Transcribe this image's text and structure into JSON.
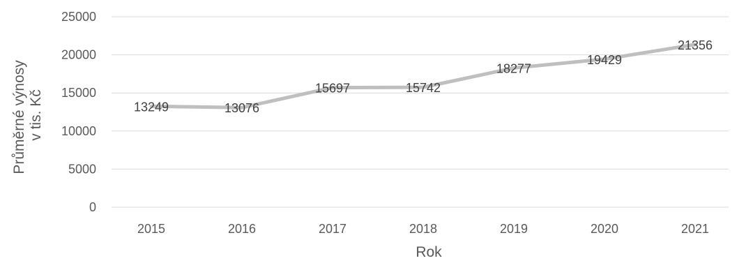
{
  "chart_data": {
    "type": "line",
    "categories": [
      "2015",
      "2016",
      "2017",
      "2018",
      "2019",
      "2020",
      "2021"
    ],
    "series": [
      {
        "values": [
          13249,
          13076,
          15697,
          15742,
          18277,
          19429,
          21356
        ],
        "color": "#bfbfbf"
      }
    ],
    "data_labels": [
      "13249",
      "13076",
      "15697",
      "15742",
      "18277",
      "19429",
      "21356"
    ],
    "ylim": [
      0,
      25000
    ],
    "y_ticks": [
      0,
      5000,
      10000,
      15000,
      20000,
      25000
    ],
    "y_tick_labels": [
      "0",
      "5000",
      "10000",
      "15000",
      "20000",
      "25000"
    ],
    "xlabel": "Rok",
    "ylabel_lines": [
      "Průměrné výnosy",
      "v tis. Kč"
    ],
    "grid": true,
    "legend": "none",
    "colors": {
      "line": "#bfbfbf",
      "grid": "#d9d9d9",
      "text": "#595959",
      "data_label": "#404040"
    }
  }
}
